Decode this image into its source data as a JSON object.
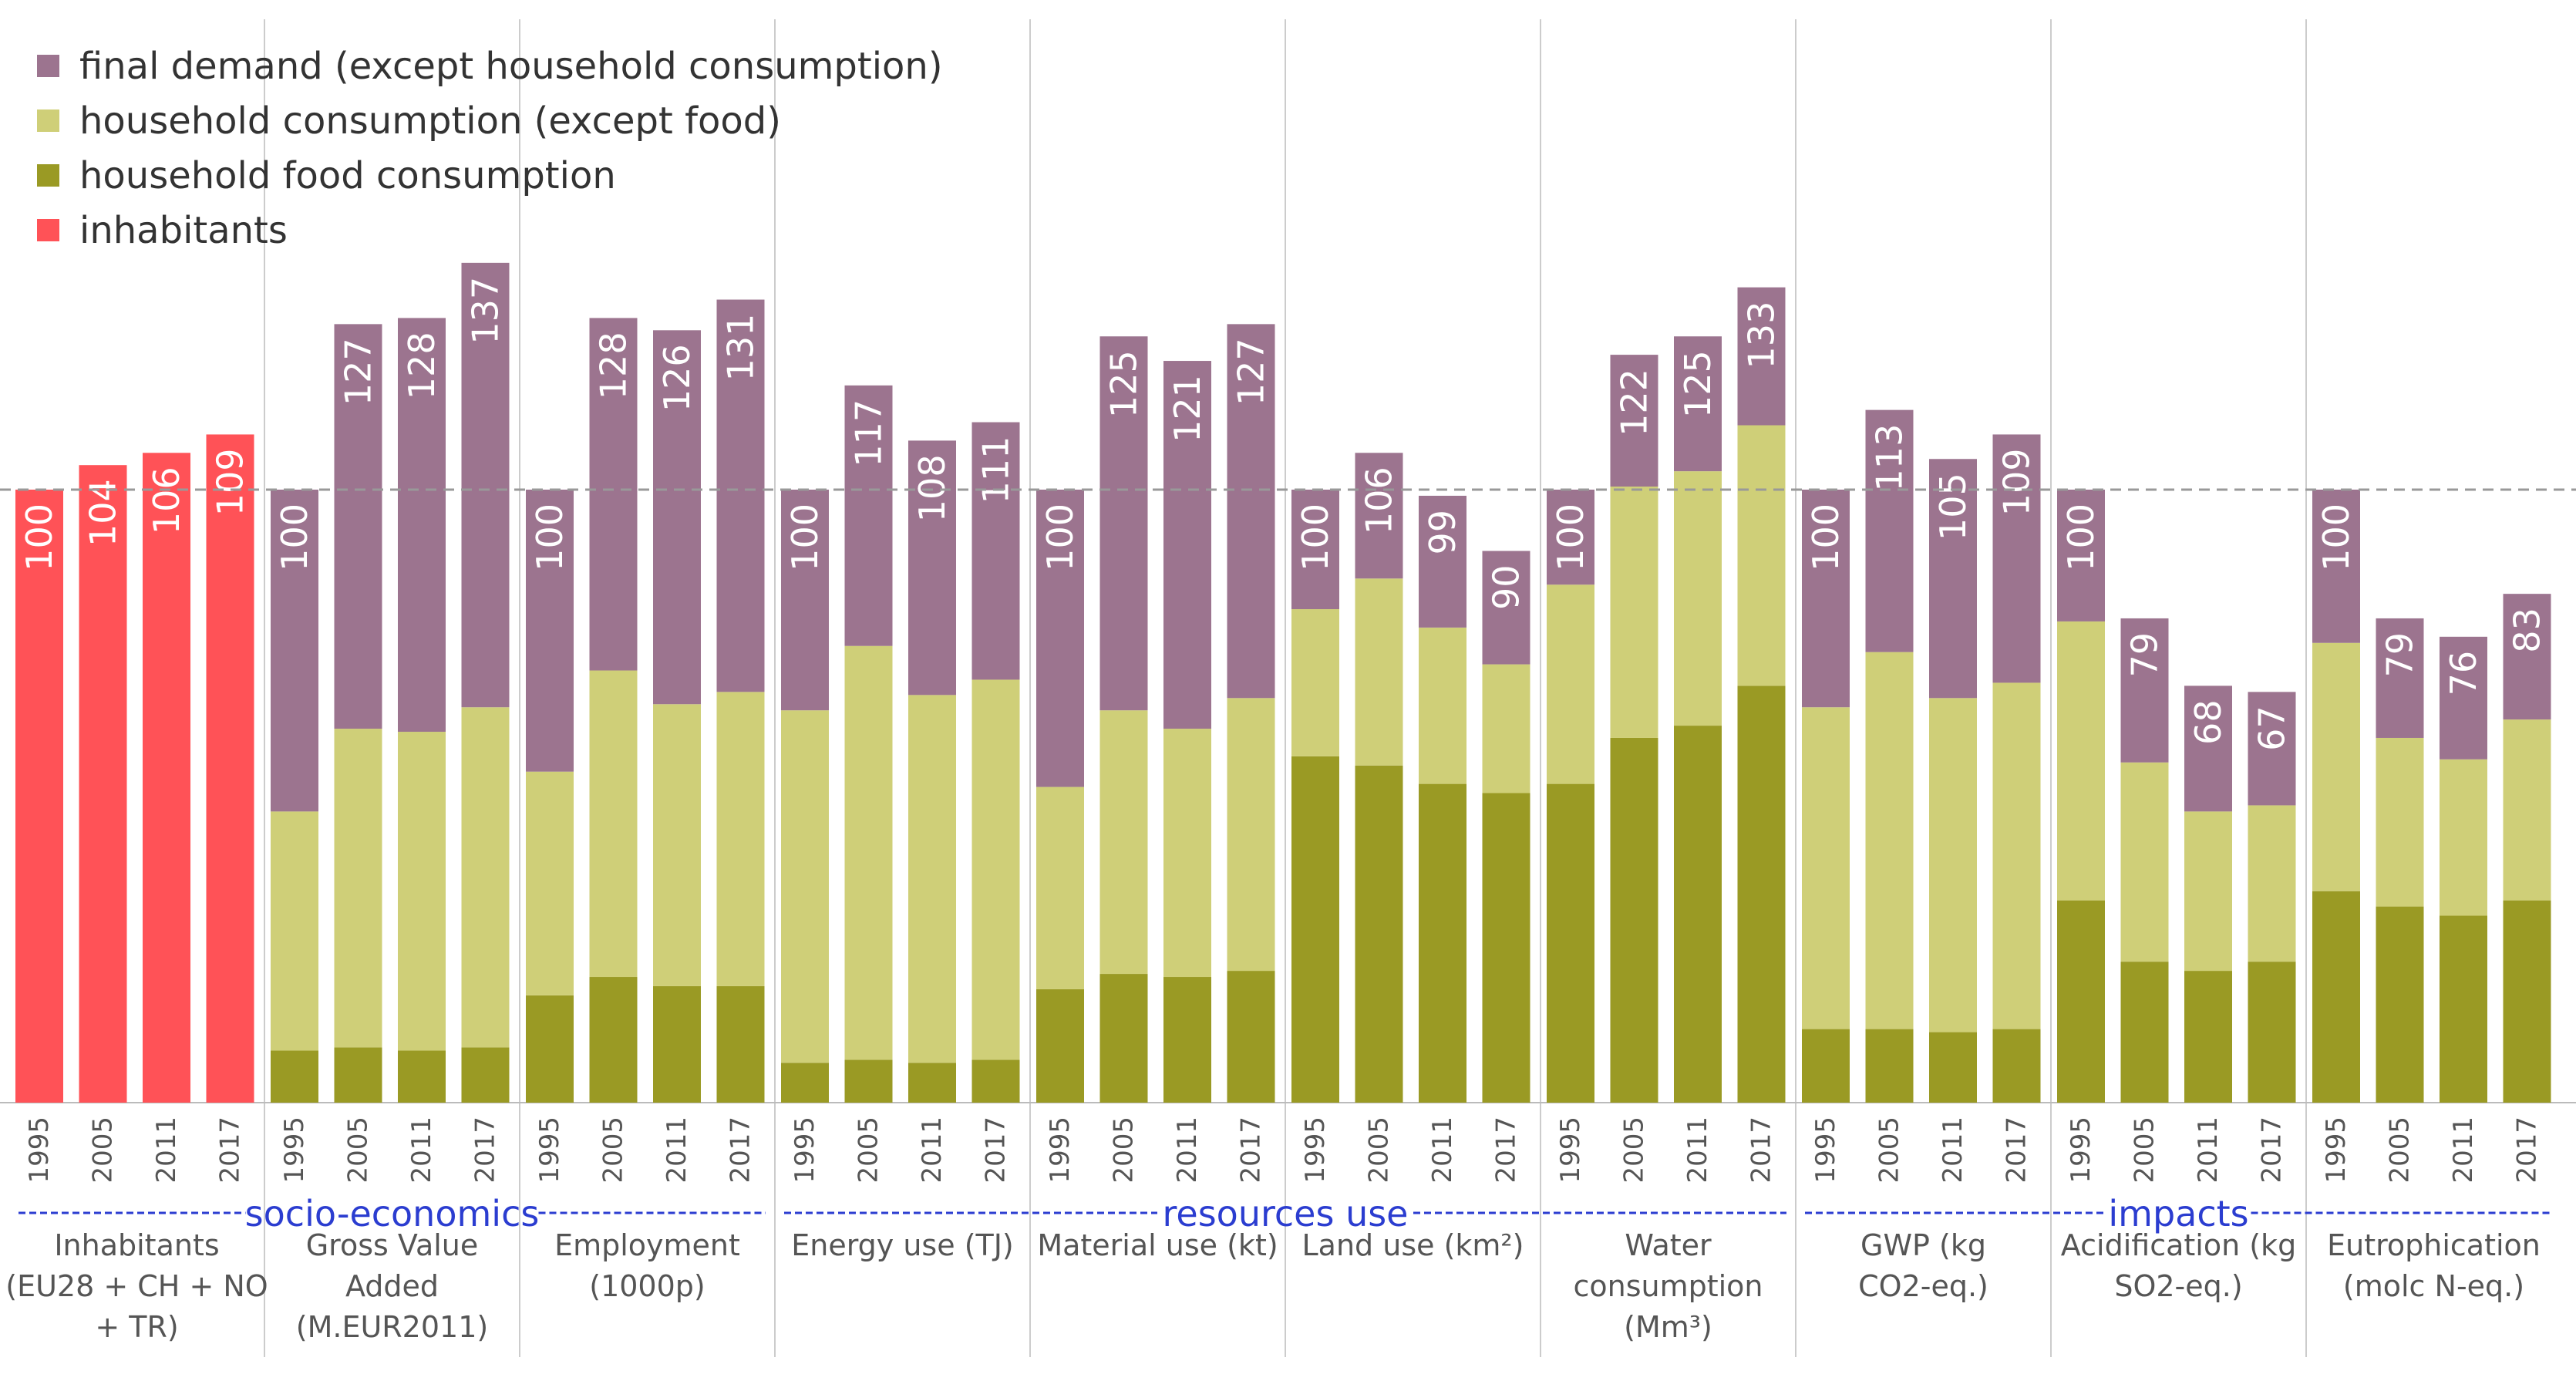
{
  "colors": {
    "final_demand": "#9c748f",
    "household_consumption": "#cfcf78",
    "household_food": "#9a9a24",
    "inhabitants": "#ff5257",
    "group_label": "#2b3dd0",
    "axis_text": "#555555"
  },
  "legend": [
    {
      "key": "final_demand",
      "label": "final demand (except household consumption)"
    },
    {
      "key": "household_consumption",
      "label": "household consumption (except food)"
    },
    {
      "key": "household_food",
      "label": "household food consumption"
    },
    {
      "key": "inhabitants",
      "label": "inhabitants"
    }
  ],
  "chart_data": {
    "type": "bar",
    "stacked": true,
    "ylim": [
      0,
      140
    ],
    "reference_line": 100,
    "years": [
      "1995",
      "2005",
      "2011",
      "2017"
    ],
    "indicators": [
      {
        "label": "Inhabitants (EU28 + CH + NO + TR)",
        "label_lines": [
          "Inhabitants",
          "(EU28 + CH + NO",
          "+ TR)"
        ],
        "totals": [
          100,
          104,
          106,
          109
        ],
        "food": [
          0,
          0,
          0,
          0
        ],
        "household": [
          0,
          0,
          0,
          0
        ],
        "inhabitants_only": true
      },
      {
        "label": "Gross Value Added (M.EUR2011)",
        "label_lines": [
          "Gross Value",
          "Added",
          "(M.EUR2011)"
        ],
        "totals": [
          100,
          127,
          128,
          137
        ],
        "food": [
          8.5,
          9,
          8.5,
          9
        ],
        "household": [
          39,
          52,
          52,
          55.5
        ]
      },
      {
        "label": "Employment (1000p)",
        "label_lines": [
          "Employment",
          "(1000p)"
        ],
        "totals": [
          100,
          128,
          126,
          131
        ],
        "food": [
          17.5,
          20.5,
          19,
          19
        ],
        "household": [
          36.5,
          50,
          46,
          48
        ]
      },
      {
        "label": "Energy use (TJ)",
        "label_lines": [
          "Energy use (TJ)"
        ],
        "totals": [
          100,
          117,
          108,
          111
        ],
        "food": [
          6.5,
          7,
          6.5,
          7
        ],
        "household": [
          57.5,
          67.5,
          60,
          62
        ]
      },
      {
        "label": "Material use (kt)",
        "label_lines": [
          "Material use (kt)"
        ],
        "totals": [
          100,
          125,
          121,
          127
        ],
        "food": [
          18.5,
          21,
          20.5,
          21.5
        ],
        "household": [
          33,
          43,
          40.5,
          44.5
        ]
      },
      {
        "label": "Land use (km²)",
        "label_lines": [
          "Land use (km²)"
        ],
        "totals": [
          100,
          106,
          99,
          90
        ],
        "food": [
          56.5,
          55,
          52,
          50.5
        ],
        "household": [
          24,
          30.5,
          25.5,
          21
        ]
      },
      {
        "label": "Water consumption (Mm³)",
        "label_lines": [
          "Water",
          "consumption",
          "(Mm³)"
        ],
        "totals": [
          100,
          122,
          125,
          133
        ],
        "food": [
          52,
          59.5,
          61.5,
          68
        ],
        "household": [
          32.5,
          41,
          41.5,
          42.5
        ]
      },
      {
        "label": "GWP (kg CO2-eq.)",
        "label_lines": [
          "GWP (kg",
          "CO2-eq.)"
        ],
        "totals": [
          100,
          113,
          105,
          109
        ],
        "food": [
          12,
          12,
          11.5,
          12
        ],
        "household": [
          52.5,
          61.5,
          54.5,
          56.5
        ]
      },
      {
        "label": "Acidification (kg SO2-eq.)",
        "label_lines": [
          "Acidification (kg",
          "SO2-eq.)"
        ],
        "totals": [
          100,
          79,
          68,
          67
        ],
        "food": [
          33,
          23,
          21.5,
          23
        ],
        "household": [
          45.5,
          32.5,
          26,
          25.5
        ]
      },
      {
        "label": "Eutrophication (molc N-eq.)",
        "label_lines": [
          "Eutrophication",
          "(molc N-eq.)"
        ],
        "totals": [
          100,
          79,
          76,
          83
        ],
        "food": [
          34.5,
          32,
          30.5,
          33
        ],
        "household": [
          40.5,
          27.5,
          25.5,
          29.5
        ]
      }
    ],
    "groups": [
      {
        "label": "socio-economics",
        "from": 0,
        "to": 2
      },
      {
        "label": "resources use",
        "from": 3,
        "to": 6
      },
      {
        "label": "impacts",
        "from": 7,
        "to": 9
      }
    ]
  }
}
